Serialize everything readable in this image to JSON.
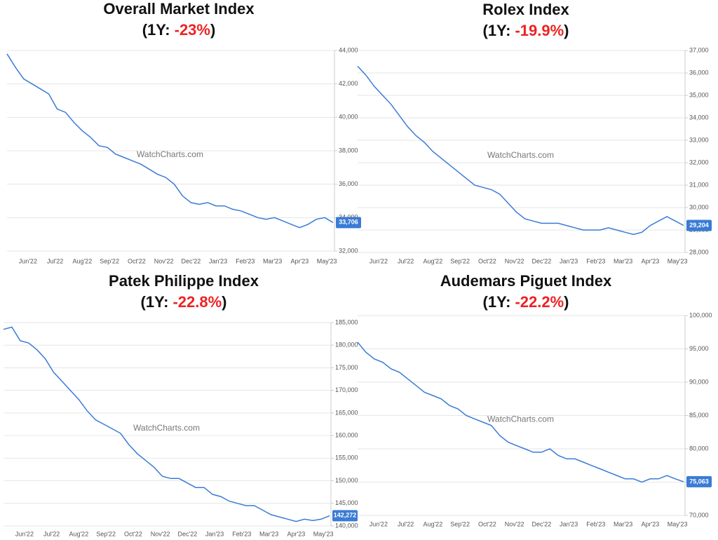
{
  "chart_data": [
    {
      "type": "line",
      "title": "Overall Market Index",
      "subtitle_parts": [
        "(1Y:",
        "-23%",
        ")"
      ],
      "watermark": "WatchCharts.com",
      "color": "#3a7bd5",
      "change_color": "#ee2222",
      "grid": true,
      "x_labels": [
        "Jun'22",
        "Jul'22",
        "Aug'22",
        "Sep'22",
        "Oct'22",
        "Nov'22",
        "Dec'22",
        "Jan'23",
        "Feb'23",
        "Mar'23",
        "Apr'23",
        "May'23"
      ],
      "values": [
        43800,
        43000,
        42300,
        42000,
        41700,
        41400,
        40500,
        40300,
        39700,
        39200,
        38800,
        38300,
        38200,
        37800,
        37600,
        37400,
        37200,
        36900,
        36600,
        36400,
        36000,
        35300,
        34900,
        34800,
        34900,
        34700,
        34700,
        34500,
        34400,
        34200,
        34000,
        33900,
        34000,
        33800,
        33600,
        33400,
        33600,
        33900,
        34000,
        33706
      ],
      "value_labels": [
        null,
        null,
        null,
        null,
        null,
        null,
        null,
        null,
        null,
        null,
        null,
        null,
        null,
        null,
        null,
        null,
        null,
        null,
        null,
        null,
        null,
        null,
        null,
        null,
        null,
        null,
        null,
        null,
        null,
        null,
        null,
        null,
        null,
        null,
        null,
        null,
        null,
        null,
        null,
        "33,706"
      ],
      "ylim": [
        32000,
        44000
      ],
      "yticks": [
        {
          "value": 32000,
          "label": "32,000"
        },
        {
          "value": 34000,
          "label": "34,000"
        },
        {
          "value": 36000,
          "label": "36,000"
        },
        {
          "value": 38000,
          "label": "38,000"
        },
        {
          "value": 40000,
          "label": "40,000"
        },
        {
          "value": 42000,
          "label": "42,000"
        },
        {
          "value": 44000,
          "label": "44,000"
        }
      ]
    },
    {
      "type": "line",
      "title": "Rolex Index",
      "subtitle_parts": [
        "(1Y:",
        "-19.9%",
        ")"
      ],
      "watermark": "WatchCharts.com",
      "color": "#3a7bd5",
      "change_color": "#ee2222",
      "grid": true,
      "x_labels": [
        "Jun'22",
        "Jul'22",
        "Aug'22",
        "Sep'22",
        "Oct'22",
        "Nov'22",
        "Dec'22",
        "Jan'23",
        "Feb'23",
        "Mar'23",
        "Apr'23",
        "May'23"
      ],
      "values": [
        36300,
        35900,
        35400,
        35000,
        34600,
        34100,
        33600,
        33200,
        32900,
        32500,
        32200,
        31900,
        31600,
        31300,
        31000,
        30900,
        30800,
        30600,
        30200,
        29800,
        29500,
        29400,
        29300,
        29300,
        29300,
        29200,
        29100,
        29000,
        29000,
        29000,
        29100,
        29000,
        28900,
        28800,
        28900,
        29200,
        29400,
        29600,
        29400,
        29204
      ],
      "value_labels": [
        null,
        null,
        null,
        null,
        null,
        null,
        null,
        null,
        null,
        null,
        null,
        null,
        null,
        null,
        null,
        null,
        null,
        null,
        null,
        null,
        null,
        null,
        null,
        null,
        null,
        null,
        null,
        null,
        null,
        null,
        null,
        null,
        null,
        null,
        null,
        null,
        null,
        null,
        null,
        "29,204"
      ],
      "ylim": [
        28000,
        37000
      ],
      "yticks": [
        {
          "value": 28000,
          "label": "28,000"
        },
        {
          "value": 29000,
          "label": "29,000"
        },
        {
          "value": 30000,
          "label": "30,000"
        },
        {
          "value": 31000,
          "label": "31,000"
        },
        {
          "value": 32000,
          "label": "32,000"
        },
        {
          "value": 33000,
          "label": "33,000"
        },
        {
          "value": 34000,
          "label": "34,000"
        },
        {
          "value": 35000,
          "label": "35,000"
        },
        {
          "value": 36000,
          "label": "36,000"
        },
        {
          "value": 37000,
          "label": "37,000"
        }
      ]
    },
    {
      "type": "line",
      "title": "Patek Philippe Index",
      "subtitle_parts": [
        "(1Y:",
        "-22.8%",
        ")"
      ],
      "watermark": "WatchCharts.com",
      "color": "#3a7bd5",
      "change_color": "#ee2222",
      "grid": true,
      "x_labels": [
        "Jun'22",
        "Jul'22",
        "Aug'22",
        "Sep'22",
        "Oct'22",
        "Nov'22",
        "Dec'22",
        "Jan'23",
        "Feb'23",
        "Mar'23",
        "Apr'23",
        "May'23"
      ],
      "values": [
        183500,
        184000,
        181000,
        180500,
        179000,
        177000,
        174000,
        172000,
        170000,
        168000,
        165500,
        163500,
        162500,
        161500,
        160500,
        158000,
        156000,
        154500,
        153000,
        151000,
        150500,
        150500,
        149500,
        148500,
        148500,
        147000,
        146500,
        145500,
        145000,
        144500,
        144500,
        143500,
        142500,
        142000,
        141500,
        141000,
        141500,
        141200,
        141500,
        142272
      ],
      "value_labels": [
        null,
        null,
        null,
        null,
        null,
        null,
        null,
        null,
        null,
        null,
        null,
        null,
        null,
        null,
        null,
        null,
        null,
        null,
        null,
        null,
        null,
        null,
        null,
        null,
        null,
        null,
        null,
        null,
        null,
        null,
        null,
        null,
        null,
        null,
        null,
        null,
        null,
        null,
        null,
        "142,272"
      ],
      "ylim": [
        140000,
        185000
      ],
      "yticks": [
        {
          "value": 140000,
          "label": "140,000"
        },
        {
          "value": 145000,
          "label": "145,000"
        },
        {
          "value": 150000,
          "label": "150,000"
        },
        {
          "value": 155000,
          "label": "155,000"
        },
        {
          "value": 160000,
          "label": "160,000"
        },
        {
          "value": 165000,
          "label": "165,000"
        },
        {
          "value": 170000,
          "label": "170,000"
        },
        {
          "value": 175000,
          "label": "175,000"
        },
        {
          "value": 180000,
          "label": "180,000"
        },
        {
          "value": 185000,
          "label": "185,000"
        }
      ]
    },
    {
      "type": "line",
      "title": "Audemars Piguet Index",
      "subtitle_parts": [
        "(1Y:",
        "-22.2%",
        ")"
      ],
      "watermark": "WatchCharts.com",
      "color": "#3a7bd5",
      "change_color": "#ee2222",
      "grid": true,
      "x_labels": [
        "Jun'22",
        "Jul'22",
        "Aug'22",
        "Sep'22",
        "Oct'22",
        "Nov'22",
        "Dec'22",
        "Jan'23",
        "Feb'23",
        "Mar'23",
        "Apr'23",
        "May'23"
      ],
      "values": [
        96000,
        94500,
        93500,
        93000,
        92000,
        91500,
        90500,
        89500,
        88500,
        88000,
        87500,
        86500,
        86000,
        85000,
        84500,
        84000,
        83500,
        82000,
        81000,
        80500,
        80000,
        79500,
        79500,
        80000,
        79000,
        78500,
        78500,
        78000,
        77500,
        77000,
        76500,
        76000,
        75500,
        75500,
        75000,
        75500,
        75500,
        76000,
        75500,
        75063
      ],
      "value_labels": [
        null,
        null,
        null,
        null,
        null,
        null,
        null,
        null,
        null,
        null,
        null,
        null,
        null,
        null,
        null,
        null,
        null,
        null,
        null,
        null,
        null,
        null,
        null,
        null,
        null,
        null,
        null,
        null,
        null,
        null,
        null,
        null,
        null,
        null,
        null,
        null,
        null,
        null,
        null,
        "75,063"
      ],
      "ylim": [
        70000,
        100000
      ],
      "yticks": [
        {
          "value": 70000,
          "label": "70,000"
        },
        {
          "value": 75000,
          "label": "75,000"
        },
        {
          "value": 80000,
          "label": "80,000"
        },
        {
          "value": 85000,
          "label": "85,000"
        },
        {
          "value": 90000,
          "label": "90,000"
        },
        {
          "value": 95000,
          "label": "95,000"
        },
        {
          "value": 100000,
          "label": "100,000"
        }
      ]
    }
  ]
}
